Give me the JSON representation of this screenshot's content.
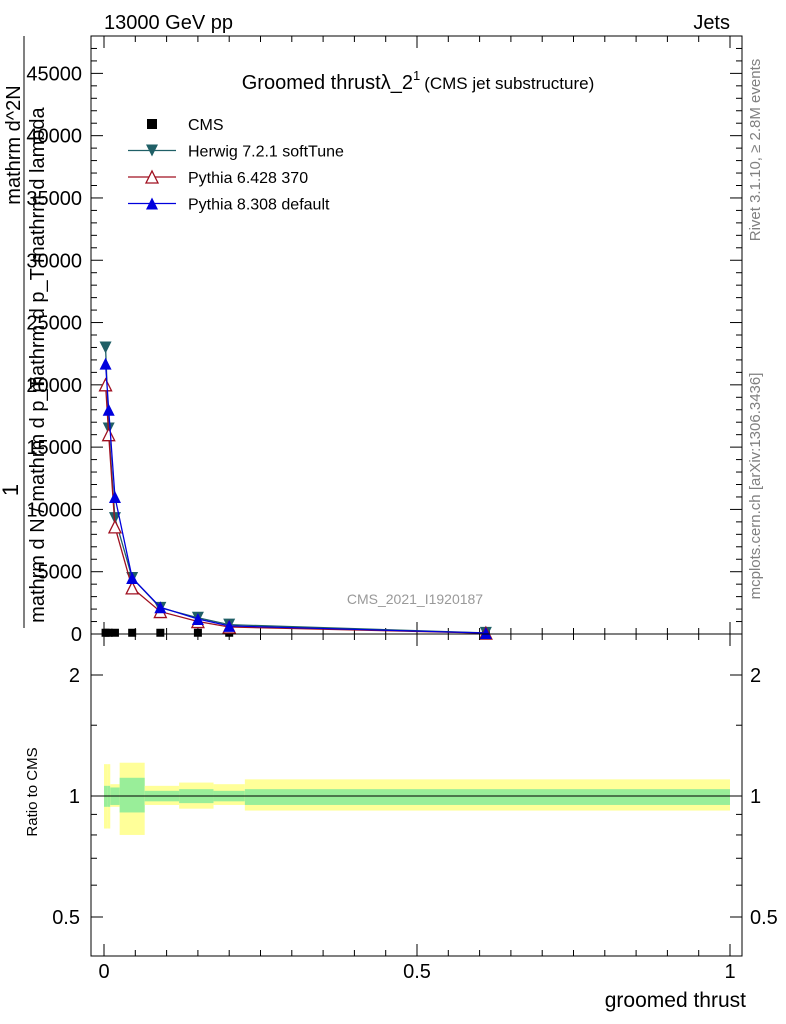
{
  "header": {
    "left": "13000 GeV pp",
    "right": "Jets"
  },
  "side_labels": {
    "rivet": "Rivet 3.1.10, ≥ 2.8M events",
    "mcplots": "mcplots.cern.ch [arXiv:1306.3436]"
  },
  "analysis_id": "CMS_2021_I1920187",
  "chart_data": [
    {
      "type": "line",
      "panel": "main",
      "title": "Groomed thrustλ_2",
      "title_superscript": "1",
      "subtitle": "(CMS jet substructure)",
      "ylabel_numerator": "mathrm d^2N",
      "ylabel_denominator": "mathrm d p_T mathrm d lambda",
      "ylabel_prefix_num": "1",
      "ylabel_prefix_den": "mathrm d N / mathrm d p_T",
      "xlim": [
        0,
        1
      ],
      "ylim": [
        0,
        48000
      ],
      "yticks": [
        0,
        5000,
        10000,
        15000,
        20000,
        25000,
        30000,
        35000,
        40000,
        45000
      ],
      "ytick_labels": [
        "0",
        "5000",
        "10000",
        "15000",
        "20000",
        "25000",
        "30000",
        "35000",
        "40000",
        "45000"
      ],
      "legend_position": "top-left",
      "series": [
        {
          "name": "CMS",
          "color": "#000000",
          "marker": "square",
          "x": [
            0.0025,
            0.0075,
            0.0175,
            0.045,
            0.09,
            0.15,
            0.2,
            0.61
          ],
          "y": [
            100,
            100,
            100,
            100,
            100,
            100,
            100,
            60
          ]
        },
        {
          "name": "Herwig 7.2.1 softTune",
          "color": "#1f5f66",
          "marker": "triangle-down",
          "x": [
            0.0025,
            0.0075,
            0.0175,
            0.045,
            0.09,
            0.15,
            0.2,
            0.61
          ],
          "y": [
            23000,
            16500,
            9300,
            4500,
            2100,
            1300,
            750,
            90
          ]
        },
        {
          "name": "Pythia 6.428 370",
          "color": "#a01020",
          "marker": "triangle-up-open",
          "x": [
            0.0025,
            0.0075,
            0.0175,
            0.045,
            0.09,
            0.15,
            0.2,
            0.61
          ],
          "y": [
            20000,
            16000,
            8600,
            3700,
            1800,
            1000,
            560,
            70
          ]
        },
        {
          "name": "Pythia 8.308 default",
          "color": "#0000dd",
          "marker": "triangle-up",
          "x": [
            0.0025,
            0.0075,
            0.0175,
            0.045,
            0.09,
            0.15,
            0.2,
            0.61
          ],
          "y": [
            21700,
            18000,
            11000,
            4500,
            2150,
            1200,
            650,
            80
          ]
        }
      ]
    },
    {
      "type": "area",
      "panel": "ratio",
      "ylabel": "Ratio to CMS",
      "xlabel": "groomed thrust",
      "xlim": [
        0,
        1
      ],
      "ylim": [
        0.4,
        2.3
      ],
      "yscale": "log",
      "yticks": [
        0.5,
        1,
        2
      ],
      "ytick_labels": [
        "0.5",
        "1",
        "2"
      ],
      "xticks": [
        0,
        0.5,
        1
      ],
      "xtick_labels": [
        "0",
        "0.5",
        "1"
      ],
      "reference": 1,
      "bands": {
        "bin_edges": [
          0,
          0.005,
          0.01,
          0.025,
          0.065,
          0.12,
          0.175,
          0.225,
          1.0
        ],
        "inner_low": [
          0.94,
          0.94,
          0.95,
          0.91,
          0.97,
          0.96,
          0.97,
          0.95
        ],
        "inner_high": [
          1.06,
          1.06,
          1.05,
          1.11,
          1.03,
          1.04,
          1.03,
          1.04
        ],
        "outer_low": [
          0.83,
          0.83,
          0.94,
          0.8,
          0.95,
          0.93,
          0.95,
          0.92
        ],
        "outer_high": [
          1.2,
          1.2,
          1.07,
          1.21,
          1.06,
          1.08,
          1.07,
          1.1
        ],
        "inner_color": "#99ee99",
        "outer_color": "#ffff99"
      }
    }
  ]
}
